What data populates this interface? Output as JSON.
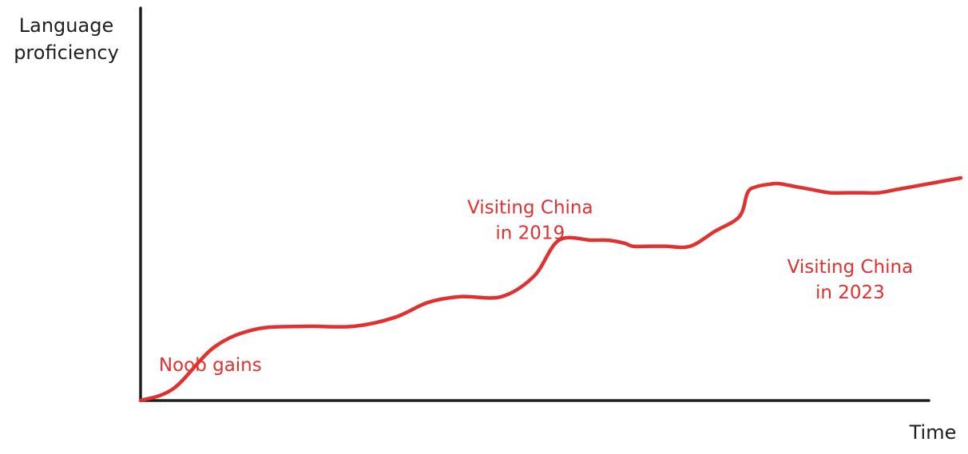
{
  "colors": {
    "axis": "#1e1e1e",
    "accent": "#e03131"
  },
  "chart_data": {
    "type": "line",
    "title": "",
    "ylabel_lines": [
      "Language",
      "proficiency"
    ],
    "xlabel": "Time",
    "grid": false,
    "legend": "none",
    "xlim": [
      0,
      100
    ],
    "ylim": [
      0,
      100
    ],
    "series": [
      {
        "x": [
          0,
          4,
          9,
          14,
          20,
          26,
          31,
          35,
          39,
          44,
          48,
          51,
          55,
          57,
          59,
          60,
          62,
          64,
          67,
          70,
          73,
          74,
          75,
          77,
          78,
          80,
          82,
          84,
          86,
          88,
          90,
          92,
          94,
          96,
          98,
          100
        ],
        "y": [
          0,
          4,
          18,
          24,
          25,
          25,
          28,
          33,
          35,
          35,
          42,
          54,
          54,
          54,
          53,
          52,
          52,
          52,
          52,
          57,
          62,
          70,
          72,
          73,
          73,
          72,
          71,
          70,
          70,
          70,
          70,
          71,
          72,
          73,
          74,
          75
        ]
      }
    ],
    "annotations": [
      {
        "text": "Noob gains",
        "x": 8.5,
        "y": 10
      },
      {
        "lines": [
          "Visiting China",
          "in 2019"
        ],
        "x": 47.5,
        "y": 63
      },
      {
        "lines": [
          "Visiting China",
          "in 2023"
        ],
        "x": 86.5,
        "y": 43
      }
    ]
  }
}
